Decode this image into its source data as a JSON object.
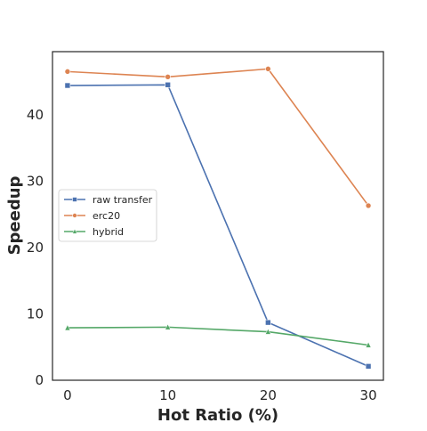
{
  "chart_data": {
    "type": "line",
    "title": "",
    "xlabel": "Hot Ratio (%)",
    "ylabel": "Speedup",
    "x": [
      0,
      10,
      20,
      30
    ],
    "xticks": [
      0,
      10,
      20,
      30
    ],
    "yticks": [
      0,
      10,
      20,
      30,
      40
    ],
    "xlim": [
      -1.5,
      31.5
    ],
    "ylim": [
      0,
      49.5
    ],
    "grid": false,
    "legend_position": "center-left",
    "series": [
      {
        "name": "raw transfer",
        "values": [
          44.4,
          44.5,
          8.7,
          2.1
        ],
        "color": "#4c72b0",
        "marker": "square"
      },
      {
        "name": "erc20",
        "values": [
          46.5,
          45.7,
          46.9,
          26.3
        ],
        "color": "#dd8452",
        "marker": "circle"
      },
      {
        "name": "hybrid",
        "values": [
          7.9,
          8.0,
          7.3,
          5.3
        ],
        "color": "#55a868",
        "marker": "triangle"
      }
    ]
  }
}
